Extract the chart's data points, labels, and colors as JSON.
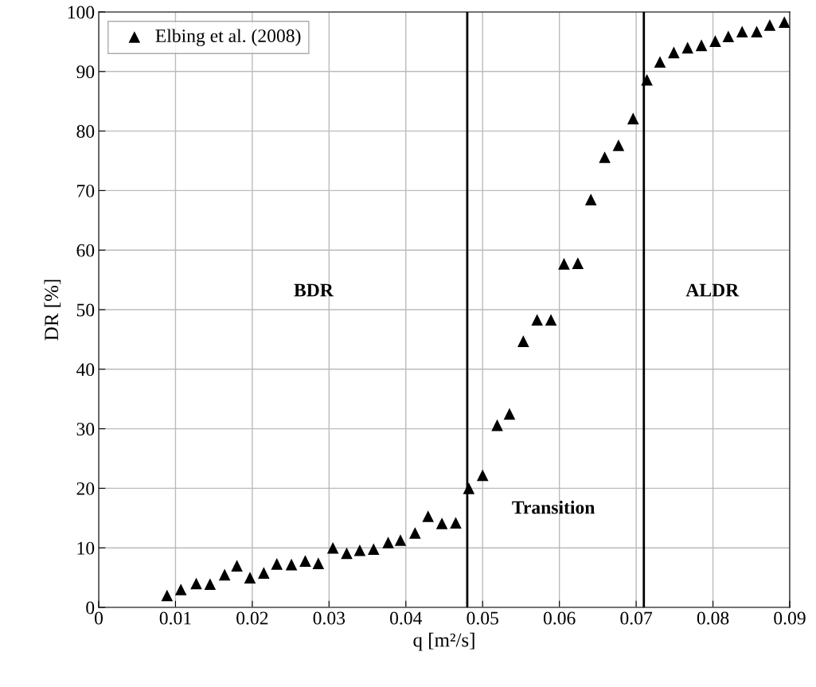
{
  "chart_data": {
    "type": "scatter",
    "xlabel": "q [m²/s]",
    "ylabel": "DR [%]",
    "x": [
      0.0089,
      0.0107,
      0.0127,
      0.0145,
      0.0164,
      0.018,
      0.0197,
      0.0215,
      0.0232,
      0.0251,
      0.0269,
      0.0286,
      0.0305,
      0.0323,
      0.034,
      0.0358,
      0.0377,
      0.0393,
      0.0412,
      0.0429,
      0.0447,
      0.0465,
      0.0482,
      0.05,
      0.0519,
      0.0535,
      0.0553,
      0.0571,
      0.0589,
      0.0606,
      0.0624,
      0.0641,
      0.0659,
      0.0677,
      0.0696,
      0.0714,
      0.0731,
      0.0749,
      0.0767,
      0.0785,
      0.0803,
      0.082,
      0.0838,
      0.0857,
      0.0874,
      0.0893
    ],
    "series": [
      {
        "name": "Elbing et al. (2008)",
        "color": "#000000",
        "values": [
          2,
          3,
          4,
          3.9,
          5.5,
          7,
          5,
          5.8,
          7.3,
          7.2,
          7.8,
          7.4,
          10,
          9.1,
          9.6,
          9.8,
          10.9,
          11.3,
          12.5,
          15.3,
          14.1,
          14.2,
          20,
          22.2,
          30.6,
          32.5,
          44.7,
          48.3,
          48.3,
          57.7,
          57.8,
          68.5,
          75.6,
          77.6,
          82.1,
          88.6,
          91.6,
          93.2,
          94,
          94.4,
          95.1,
          95.9,
          96.7,
          96.7,
          97.8,
          98.3
        ]
      }
    ],
    "marker": "triangle",
    "legend": "top left",
    "grid": true,
    "xlim": [
      0,
      0.09
    ],
    "xticks": [
      0,
      0.01,
      0.02,
      0.03,
      0.04,
      0.05,
      0.06,
      0.07,
      0.08,
      0.09
    ],
    "ylim": [
      0,
      100
    ],
    "yticks": [
      0,
      10,
      20,
      30,
      40,
      50,
      60,
      70,
      80,
      90,
      100
    ],
    "ref_lines": [
      {
        "axis": "x",
        "value": 0.048,
        "color": "#000000"
      },
      {
        "axis": "x",
        "value": 0.071,
        "color": "#000000"
      }
    ],
    "annotations": [
      "BDR",
      "Transition",
      "ALDR"
    ]
  }
}
